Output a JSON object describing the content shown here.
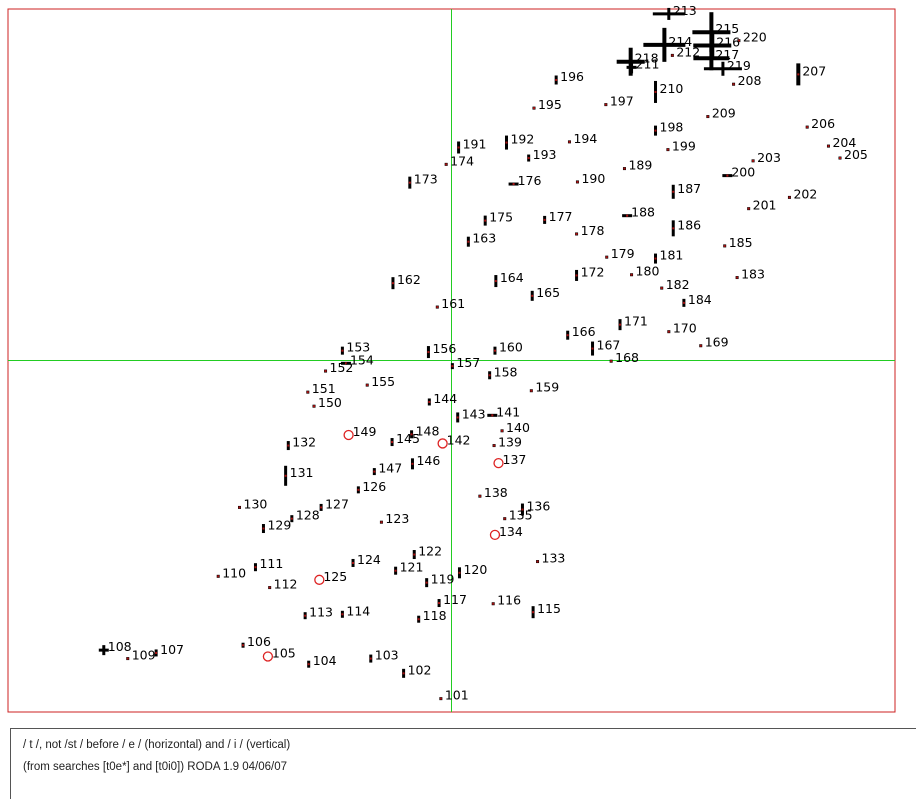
{
  "caption": {
    "line1": "/ t /, not /st / before / e / (horizontal) and / i / (vertical)",
    "line2": "(from searches [t0e*] and [t0i0]) RODA 1.9 04/06/07"
  },
  "colors": {
    "frame": "#cc2222",
    "crosshair": "#22cc22",
    "mark": "#000000",
    "dot_center": "#aa1111",
    "circle": "#dd2222"
  },
  "chart_data": {
    "type": "scatter",
    "title": "",
    "xlabel": "",
    "ylabel": "",
    "xlim": [
      0,
      100
    ],
    "ylim": [
      0,
      100
    ],
    "grid": false,
    "crosshair": {
      "x": 50,
      "y": 50
    },
    "points": [
      {
        "label": "101",
        "x": 48.8,
        "y": 1.9,
        "w": 3,
        "h": 3,
        "kind": "bar"
      },
      {
        "label": "102",
        "x": 44.6,
        "y": 5.5,
        "w": 3,
        "h": 9,
        "kind": "bar"
      },
      {
        "label": "103",
        "x": 40.9,
        "y": 7.6,
        "w": 3,
        "h": 8,
        "kind": "bar"
      },
      {
        "label": "104",
        "x": 33.9,
        "y": 6.8,
        "w": 3,
        "h": 7,
        "kind": "bar"
      },
      {
        "label": "105",
        "x": 29.3,
        "y": 7.9,
        "w": 0,
        "h": 0,
        "kind": "circle"
      },
      {
        "label": "106",
        "x": 26.5,
        "y": 9.5,
        "w": 3,
        "h": 5,
        "kind": "bar"
      },
      {
        "label": "107",
        "x": 16.7,
        "y": 8.4,
        "w": 3,
        "h": 7,
        "kind": "bar"
      },
      {
        "label": "108",
        "x": 10.8,
        "y": 8.8,
        "w": 10,
        "h": 10,
        "kind": "cross"
      },
      {
        "label": "109",
        "x": 13.5,
        "y": 7.6,
        "w": 3,
        "h": 3,
        "kind": "bar"
      },
      {
        "label": "110",
        "x": 23.7,
        "y": 19.3,
        "w": 3,
        "h": 3,
        "kind": "bar"
      },
      {
        "label": "111",
        "x": 27.9,
        "y": 20.6,
        "w": 3,
        "h": 8,
        "kind": "bar"
      },
      {
        "label": "112",
        "x": 29.5,
        "y": 17.7,
        "w": 3,
        "h": 3,
        "kind": "bar"
      },
      {
        "label": "113",
        "x": 33.5,
        "y": 13.7,
        "w": 3,
        "h": 7,
        "kind": "bar"
      },
      {
        "label": "114",
        "x": 37.7,
        "y": 13.9,
        "w": 3,
        "h": 7,
        "kind": "bar"
      },
      {
        "label": "115",
        "x": 59.2,
        "y": 14.2,
        "w": 3,
        "h": 12,
        "kind": "bar"
      },
      {
        "label": "116",
        "x": 54.7,
        "y": 15.4,
        "w": 3,
        "h": 3,
        "kind": "bar"
      },
      {
        "label": "117",
        "x": 48.6,
        "y": 15.5,
        "w": 3,
        "h": 8,
        "kind": "bar"
      },
      {
        "label": "118",
        "x": 46.3,
        "y": 13.2,
        "w": 3,
        "h": 7,
        "kind": "bar"
      },
      {
        "label": "119",
        "x": 47.2,
        "y": 18.4,
        "w": 3,
        "h": 9,
        "kind": "bar"
      },
      {
        "label": "120",
        "x": 50.9,
        "y": 19.8,
        "w": 3,
        "h": 11,
        "kind": "bar"
      },
      {
        "label": "121",
        "x": 43.7,
        "y": 20.1,
        "w": 3,
        "h": 8,
        "kind": "bar"
      },
      {
        "label": "122",
        "x": 45.8,
        "y": 22.4,
        "w": 3,
        "h": 9,
        "kind": "bar"
      },
      {
        "label": "123",
        "x": 42.1,
        "y": 27.0,
        "w": 3,
        "h": 3,
        "kind": "bar"
      },
      {
        "label": "124",
        "x": 38.9,
        "y": 21.2,
        "w": 3,
        "h": 8,
        "kind": "bar"
      },
      {
        "label": "125",
        "x": 35.1,
        "y": 18.8,
        "w": 0,
        "h": 0,
        "kind": "circle"
      },
      {
        "label": "126",
        "x": 39.5,
        "y": 31.6,
        "w": 3,
        "h": 7,
        "kind": "bar"
      },
      {
        "label": "127",
        "x": 35.3,
        "y": 29.1,
        "w": 3,
        "h": 7,
        "kind": "bar"
      },
      {
        "label": "128",
        "x": 32.0,
        "y": 27.5,
        "w": 3,
        "h": 7,
        "kind": "bar"
      },
      {
        "label": "129",
        "x": 28.8,
        "y": 26.1,
        "w": 3,
        "h": 9,
        "kind": "bar"
      },
      {
        "label": "130",
        "x": 26.1,
        "y": 29.1,
        "w": 3,
        "h": 3,
        "kind": "bar"
      },
      {
        "label": "131",
        "x": 31.3,
        "y": 33.6,
        "w": 3,
        "h": 20,
        "kind": "bar"
      },
      {
        "label": "132",
        "x": 31.6,
        "y": 37.9,
        "w": 3,
        "h": 9,
        "kind": "bar"
      },
      {
        "label": "133",
        "x": 59.7,
        "y": 21.4,
        "w": 3,
        "h": 3,
        "kind": "bar"
      },
      {
        "label": "134",
        "x": 54.9,
        "y": 25.2,
        "w": 0,
        "h": 0,
        "kind": "circle"
      },
      {
        "label": "135",
        "x": 56.0,
        "y": 27.5,
        "w": 3,
        "h": 3,
        "kind": "bar"
      },
      {
        "label": "136",
        "x": 58.0,
        "y": 28.8,
        "w": 3,
        "h": 12,
        "kind": "bar"
      },
      {
        "label": "137",
        "x": 55.3,
        "y": 35.4,
        "w": 0,
        "h": 0,
        "kind": "circle"
      },
      {
        "label": "138",
        "x": 53.2,
        "y": 30.7,
        "w": 3,
        "h": 3,
        "kind": "bar"
      },
      {
        "label": "139",
        "x": 54.8,
        "y": 37.9,
        "w": 3,
        "h": 3,
        "kind": "bar"
      },
      {
        "label": "140",
        "x": 55.7,
        "y": 40.0,
        "w": 3,
        "h": 3,
        "kind": "bar"
      },
      {
        "label": "141",
        "x": 54.6,
        "y": 42.2,
        "w": 10,
        "h": 3,
        "kind": "bar"
      },
      {
        "label": "142",
        "x": 49.0,
        "y": 38.2,
        "w": 0,
        "h": 0,
        "kind": "circle"
      },
      {
        "label": "143",
        "x": 50.7,
        "y": 41.9,
        "w": 3,
        "h": 10,
        "kind": "bar"
      },
      {
        "label": "144",
        "x": 47.5,
        "y": 44.1,
        "w": 3,
        "h": 7,
        "kind": "bar"
      },
      {
        "label": "145",
        "x": 43.3,
        "y": 38.4,
        "w": 3,
        "h": 8,
        "kind": "bar"
      },
      {
        "label": "146",
        "x": 45.6,
        "y": 35.3,
        "w": 3,
        "h": 11,
        "kind": "bar"
      },
      {
        "label": "147",
        "x": 41.3,
        "y": 34.2,
        "w": 3,
        "h": 7,
        "kind": "bar"
      },
      {
        "label": "148",
        "x": 45.5,
        "y": 39.5,
        "w": 3,
        "h": 8,
        "kind": "bar"
      },
      {
        "label": "149",
        "x": 38.4,
        "y": 39.4,
        "w": 0,
        "h": 0,
        "kind": "circle"
      },
      {
        "label": "150",
        "x": 34.5,
        "y": 43.5,
        "w": 3,
        "h": 3,
        "kind": "bar"
      },
      {
        "label": "151",
        "x": 33.8,
        "y": 45.5,
        "w": 3,
        "h": 3,
        "kind": "bar"
      },
      {
        "label": "152",
        "x": 35.8,
        "y": 48.5,
        "w": 3,
        "h": 3,
        "kind": "bar"
      },
      {
        "label": "153",
        "x": 37.7,
        "y": 51.4,
        "w": 3,
        "h": 8,
        "kind": "bar"
      },
      {
        "label": "154",
        "x": 38.1,
        "y": 49.6,
        "w": 10,
        "h": 3,
        "kind": "bar"
      },
      {
        "label": "155",
        "x": 40.5,
        "y": 46.5,
        "w": 3,
        "h": 3,
        "kind": "bar"
      },
      {
        "label": "156",
        "x": 47.4,
        "y": 51.2,
        "w": 3,
        "h": 12,
        "kind": "bar"
      },
      {
        "label": "157",
        "x": 50.1,
        "y": 49.2,
        "w": 3,
        "h": 6,
        "kind": "bar"
      },
      {
        "label": "158",
        "x": 54.3,
        "y": 47.9,
        "w": 3,
        "h": 8,
        "kind": "bar"
      },
      {
        "label": "159",
        "x": 59.0,
        "y": 45.7,
        "w": 3,
        "h": 3,
        "kind": "bar"
      },
      {
        "label": "160",
        "x": 54.9,
        "y": 51.4,
        "w": 3,
        "h": 8,
        "kind": "bar"
      },
      {
        "label": "161",
        "x": 48.4,
        "y": 57.6,
        "w": 3,
        "h": 3,
        "kind": "bar"
      },
      {
        "label": "162",
        "x": 43.4,
        "y": 61.0,
        "w": 3,
        "h": 12,
        "kind": "bar"
      },
      {
        "label": "163",
        "x": 51.9,
        "y": 66.9,
        "w": 3,
        "h": 10,
        "kind": "bar"
      },
      {
        "label": "164",
        "x": 55.0,
        "y": 61.3,
        "w": 3,
        "h": 12,
        "kind": "bar"
      },
      {
        "label": "165",
        "x": 59.1,
        "y": 59.2,
        "w": 3,
        "h": 10,
        "kind": "bar"
      },
      {
        "label": "166",
        "x": 63.1,
        "y": 53.6,
        "w": 3,
        "h": 9,
        "kind": "bar"
      },
      {
        "label": "167",
        "x": 65.9,
        "y": 51.7,
        "w": 3,
        "h": 14,
        "kind": "bar"
      },
      {
        "label": "168",
        "x": 68.0,
        "y": 49.9,
        "w": 3,
        "h": 3,
        "kind": "bar"
      },
      {
        "label": "169",
        "x": 78.1,
        "y": 52.1,
        "w": 3,
        "h": 3,
        "kind": "bar"
      },
      {
        "label": "170",
        "x": 74.5,
        "y": 54.1,
        "w": 3,
        "h": 3,
        "kind": "bar"
      },
      {
        "label": "171",
        "x": 69.0,
        "y": 55.1,
        "w": 3,
        "h": 11,
        "kind": "bar"
      },
      {
        "label": "172",
        "x": 64.1,
        "y": 62.1,
        "w": 3,
        "h": 11,
        "kind": "bar"
      },
      {
        "label": "173",
        "x": 45.3,
        "y": 75.3,
        "w": 3,
        "h": 12,
        "kind": "bar"
      },
      {
        "label": "174",
        "x": 49.4,
        "y": 77.9,
        "w": 3,
        "h": 3,
        "kind": "bar"
      },
      {
        "label": "175",
        "x": 53.8,
        "y": 69.9,
        "w": 3,
        "h": 10,
        "kind": "bar"
      },
      {
        "label": "176",
        "x": 57.0,
        "y": 75.1,
        "w": 10,
        "h": 3,
        "kind": "bar"
      },
      {
        "label": "177",
        "x": 60.5,
        "y": 70.0,
        "w": 3,
        "h": 8,
        "kind": "bar"
      },
      {
        "label": "178",
        "x": 64.1,
        "y": 68.0,
        "w": 3,
        "h": 3,
        "kind": "bar"
      },
      {
        "label": "179",
        "x": 67.5,
        "y": 64.7,
        "w": 3,
        "h": 3,
        "kind": "bar"
      },
      {
        "label": "180",
        "x": 70.3,
        "y": 62.2,
        "w": 3,
        "h": 3,
        "kind": "bar"
      },
      {
        "label": "181",
        "x": 73.0,
        "y": 64.5,
        "w": 3,
        "h": 10,
        "kind": "bar"
      },
      {
        "label": "182",
        "x": 73.7,
        "y": 60.3,
        "w": 3,
        "h": 3,
        "kind": "bar"
      },
      {
        "label": "183",
        "x": 82.2,
        "y": 61.8,
        "w": 3,
        "h": 3,
        "kind": "bar"
      },
      {
        "label": "184",
        "x": 76.2,
        "y": 58.2,
        "w": 3,
        "h": 8,
        "kind": "bar"
      },
      {
        "label": "185",
        "x": 80.8,
        "y": 66.3,
        "w": 3,
        "h": 3,
        "kind": "bar"
      },
      {
        "label": "186",
        "x": 75.0,
        "y": 68.8,
        "w": 3,
        "h": 16,
        "kind": "bar"
      },
      {
        "label": "187",
        "x": 75.0,
        "y": 74.0,
        "w": 3,
        "h": 14,
        "kind": "bar"
      },
      {
        "label": "188",
        "x": 69.8,
        "y": 70.6,
        "w": 10,
        "h": 3,
        "kind": "bar"
      },
      {
        "label": "189",
        "x": 69.5,
        "y": 77.3,
        "w": 3,
        "h": 3,
        "kind": "bar"
      },
      {
        "label": "190",
        "x": 64.2,
        "y": 75.4,
        "w": 3,
        "h": 3,
        "kind": "bar"
      },
      {
        "label": "191",
        "x": 50.8,
        "y": 80.3,
        "w": 3,
        "h": 12,
        "kind": "bar"
      },
      {
        "label": "192",
        "x": 56.2,
        "y": 81.0,
        "w": 3,
        "h": 14,
        "kind": "bar"
      },
      {
        "label": "193",
        "x": 58.7,
        "y": 78.8,
        "w": 3,
        "h": 7,
        "kind": "bar"
      },
      {
        "label": "194",
        "x": 63.3,
        "y": 81.1,
        "w": 3,
        "h": 3,
        "kind": "bar"
      },
      {
        "label": "195",
        "x": 59.3,
        "y": 85.9,
        "w": 3,
        "h": 3,
        "kind": "bar"
      },
      {
        "label": "196",
        "x": 61.8,
        "y": 89.9,
        "w": 3,
        "h": 9,
        "kind": "bar"
      },
      {
        "label": "197",
        "x": 67.4,
        "y": 86.4,
        "w": 3,
        "h": 3,
        "kind": "bar"
      },
      {
        "label": "198",
        "x": 73.0,
        "y": 82.7,
        "w": 3,
        "h": 10,
        "kind": "bar"
      },
      {
        "label": "199",
        "x": 74.4,
        "y": 80.0,
        "w": 3,
        "h": 3,
        "kind": "bar"
      },
      {
        "label": "200",
        "x": 81.1,
        "y": 76.3,
        "w": 10,
        "h": 3,
        "kind": "bar"
      },
      {
        "label": "201",
        "x": 83.5,
        "y": 71.6,
        "w": 3,
        "h": 3,
        "kind": "bar"
      },
      {
        "label": "202",
        "x": 88.1,
        "y": 73.2,
        "w": 3,
        "h": 3,
        "kind": "bar"
      },
      {
        "label": "203",
        "x": 84.0,
        "y": 78.4,
        "w": 3,
        "h": 3,
        "kind": "bar"
      },
      {
        "label": "204",
        "x": 92.5,
        "y": 80.5,
        "w": 3,
        "h": 3,
        "kind": "bar"
      },
      {
        "label": "205",
        "x": 93.8,
        "y": 78.8,
        "w": 3,
        "h": 3,
        "kind": "bar"
      },
      {
        "label": "206",
        "x": 90.1,
        "y": 83.2,
        "w": 3,
        "h": 3,
        "kind": "bar"
      },
      {
        "label": "207",
        "x": 89.1,
        "y": 90.7,
        "w": 4,
        "h": 22,
        "kind": "bar"
      },
      {
        "label": "208",
        "x": 81.8,
        "y": 89.3,
        "w": 3,
        "h": 3,
        "kind": "bar"
      },
      {
        "label": "209",
        "x": 78.9,
        "y": 84.7,
        "w": 3,
        "h": 3,
        "kind": "bar"
      },
      {
        "label": "210",
        "x": 73.0,
        "y": 88.2,
        "w": 3,
        "h": 22,
        "kind": "bar"
      },
      {
        "label": "211",
        "x": 70.3,
        "y": 91.7,
        "w": 10,
        "h": 12,
        "kind": "cross"
      },
      {
        "label": "212",
        "x": 74.9,
        "y": 93.4,
        "w": 3,
        "h": 3,
        "kind": "bar"
      },
      {
        "label": "213",
        "x": 74.5,
        "y": 99.3,
        "w": 32,
        "h": 12,
        "kind": "cross"
      },
      {
        "label": "214",
        "x": 74.0,
        "y": 94.9,
        "w": 42,
        "h": 34,
        "kind": "cross"
      },
      {
        "label": "215",
        "x": 79.3,
        "y": 96.7,
        "w": 38,
        "h": 40,
        "kind": "cross"
      },
      {
        "label": "216",
        "x": 79.4,
        "y": 94.8,
        "w": 38,
        "h": 28,
        "kind": "cross"
      },
      {
        "label": "217",
        "x": 79.3,
        "y": 93.0,
        "w": 36,
        "h": 24,
        "kind": "cross"
      },
      {
        "label": "218",
        "x": 70.2,
        "y": 92.5,
        "w": 28,
        "h": 28,
        "kind": "cross"
      },
      {
        "label": "219",
        "x": 80.6,
        "y": 91.5,
        "w": 38,
        "h": 14,
        "kind": "cross"
      },
      {
        "label": "220",
        "x": 82.4,
        "y": 95.5,
        "w": 3,
        "h": 3,
        "kind": "bar"
      }
    ]
  }
}
